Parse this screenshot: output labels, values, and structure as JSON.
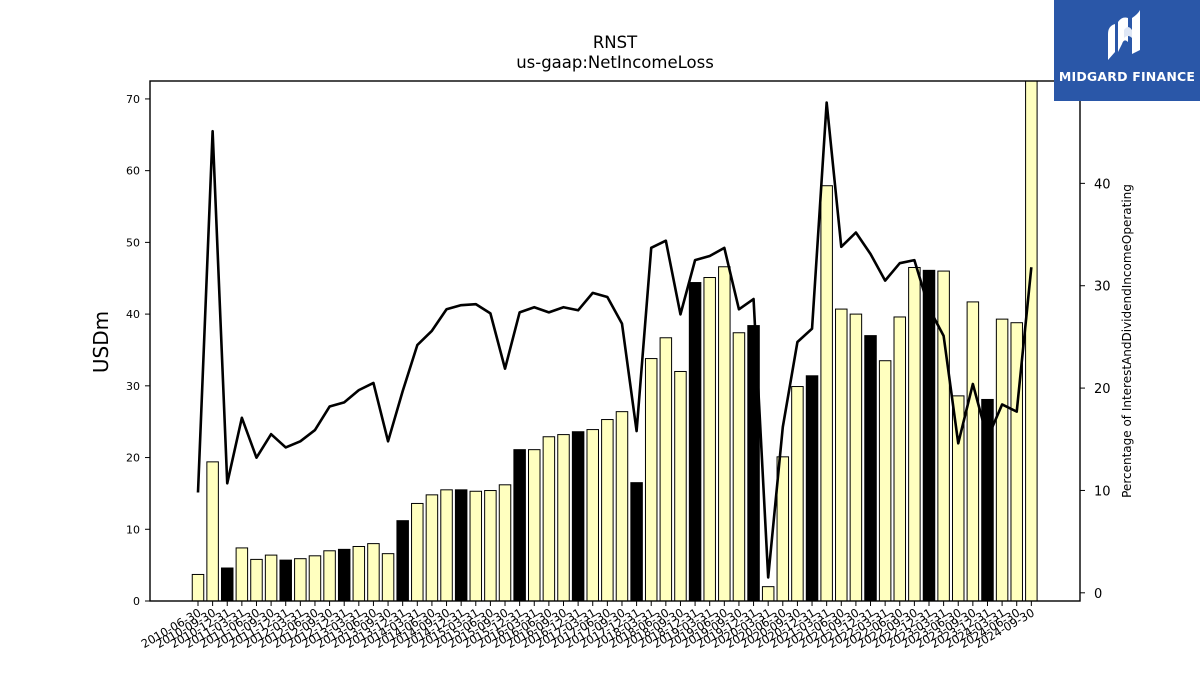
{
  "chart_data": {
    "type": "bar+line",
    "title": "RNST",
    "subtitle": "us-gaap:NetIncomeLoss",
    "ylabel": "USDm",
    "y2label": "Percentage of InterestAndDividendIncomeOperating",
    "ylim": [
      0,
      72.5
    ],
    "y2lim": [
      -0.8,
      50
    ],
    "yticks": [
      0,
      10,
      20,
      30,
      40,
      50,
      60,
      70
    ],
    "y2ticks": [
      0,
      10,
      20,
      30,
      40
    ],
    "categories": [
      "2010-06-30",
      "2010-09-30",
      "2010-12-31",
      "2011-03-31",
      "2011-06-30",
      "2011-09-30",
      "2011-12-31",
      "2012-03-31",
      "2012-06-30",
      "2012-09-30",
      "2012-12-31",
      "2013-03-31",
      "2013-06-30",
      "2013-09-30",
      "2013-12-31",
      "2014-03-31",
      "2014-06-30",
      "2014-09-30",
      "2014-12-31",
      "2015-03-31",
      "2015-06-30",
      "2015-09-30",
      "2015-12-31",
      "2016-03-31",
      "2016-06-30",
      "2016-09-30",
      "2016-12-31",
      "2017-03-31",
      "2017-06-30",
      "2017-09-30",
      "2017-12-31",
      "2018-03-31",
      "2018-06-30",
      "2018-09-30",
      "2018-12-31",
      "2019-03-31",
      "2019-06-30",
      "2019-09-30",
      "2019-12-31",
      "2020-03-31",
      "2020-06-30",
      "2020-09-30",
      "2020-12-31",
      "2021-03-31",
      "2021-06-30",
      "2021-09-30",
      "2021-12-31",
      "2022-03-31",
      "2022-06-30",
      "2022-09-30",
      "2022-12-31",
      "2023-03-31",
      "2023-06-30",
      "2023-09-30",
      "2023-12-31",
      "2024-03-31",
      "2024-06-30",
      "2024-09-30"
    ],
    "bar_values": [
      3.7,
      19.4,
      4.6,
      7.4,
      5.8,
      6.4,
      5.7,
      5.9,
      6.3,
      7.0,
      7.2,
      7.6,
      8.0,
      6.6,
      11.2,
      13.6,
      14.8,
      15.5,
      15.5,
      15.3,
      15.4,
      16.2,
      21.1,
      21.1,
      22.9,
      23.2,
      23.6,
      23.9,
      25.3,
      26.4,
      16.5,
      33.8,
      36.7,
      32.0,
      44.4,
      45.1,
      46.6,
      37.4,
      38.4,
      2.0,
      20.1,
      29.9,
      31.4,
      57.9,
      40.7,
      40.0,
      37.0,
      33.5,
      39.6,
      46.5,
      46.1,
      46.0,
      28.6,
      41.7,
      28.1,
      39.3,
      38.8,
      72.5
    ],
    "bar_colors": [
      "light",
      "light",
      "dark",
      "light",
      "light",
      "light",
      "dark",
      "light",
      "light",
      "light",
      "dark",
      "light",
      "light",
      "light",
      "dark",
      "light",
      "light",
      "light",
      "dark",
      "light",
      "light",
      "light",
      "dark",
      "light",
      "light",
      "light",
      "dark",
      "light",
      "light",
      "light",
      "dark",
      "light",
      "light",
      "light",
      "dark",
      "light",
      "light",
      "light",
      "dark",
      "light",
      "light",
      "light",
      "dark",
      "light",
      "light",
      "light",
      "dark",
      "light",
      "light",
      "light",
      "dark",
      "light",
      "light",
      "light",
      "dark",
      "light",
      "light",
      "light"
    ],
    "line_values": [
      9.8,
      45.1,
      10.7,
      17.1,
      13.2,
      15.5,
      14.2,
      14.8,
      15.9,
      18.2,
      18.6,
      19.8,
      20.5,
      14.8,
      19.7,
      24.2,
      25.6,
      27.7,
      28.1,
      28.2,
      27.3,
      21.9,
      27.4,
      27.9,
      27.4,
      27.9,
      27.6,
      29.3,
      28.9,
      26.3,
      15.8,
      33.7,
      34.4,
      27.2,
      32.5,
      32.9,
      33.7,
      27.7,
      28.7,
      1.5,
      16.2,
      24.5,
      25.8,
      47.9,
      33.8,
      35.2,
      33.1,
      30.5,
      32.2,
      32.5,
      27.8,
      25.1,
      14.6,
      20.4,
      15.1,
      18.4,
      17.7,
      31.8
    ],
    "colors": {
      "bar_light": "#ffffbf",
      "bar_dark": "#000000",
      "line": "#000000",
      "logo_bg": "#2a57a8"
    }
  },
  "logo": {
    "text": "MIDGARD FINANCE"
  }
}
